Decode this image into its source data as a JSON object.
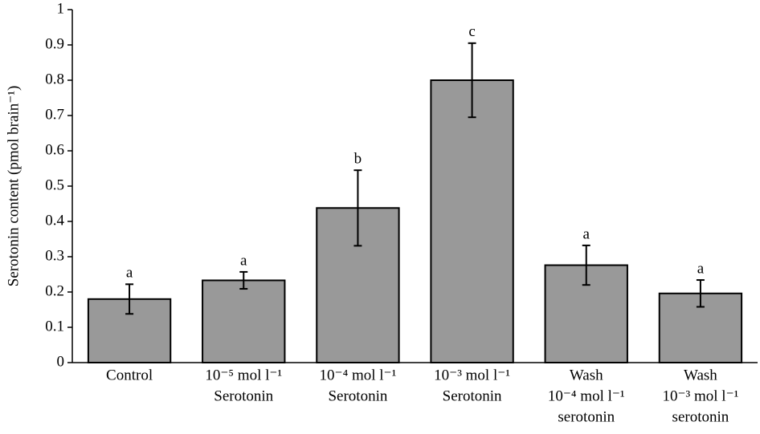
{
  "chart_data": {
    "type": "bar",
    "y_label": "Serotonin content (pmol brain⁻¹)",
    "categories": [
      [
        "Control"
      ],
      [
        "10⁻⁵ mol l⁻¹",
        "Serotonin"
      ],
      [
        "10⁻⁴ mol l⁻¹",
        "Serotonin"
      ],
      [
        "10⁻³ mol l⁻¹",
        "Serotonin"
      ],
      [
        "Wash",
        "10⁻⁴ mol l⁻¹",
        "serotonin"
      ],
      [
        "Wash",
        "10⁻³ mol l⁻¹",
        "serotonin"
      ]
    ],
    "values": [
      0.18,
      0.233,
      0.438,
      0.8,
      0.276,
      0.196
    ],
    "errors": [
      0.042,
      0.024,
      0.107,
      0.105,
      0.056,
      0.038
    ],
    "annotations": [
      "a",
      "a",
      "b",
      "c",
      "a",
      "a"
    ],
    "color": "#999999",
    "ylim": [
      0,
      1
    ],
    "yticks": [
      0,
      0.1,
      0.2,
      0.3,
      0.4,
      0.5,
      0.6,
      0.7,
      0.8,
      0.9,
      1
    ],
    "grid": false
  }
}
